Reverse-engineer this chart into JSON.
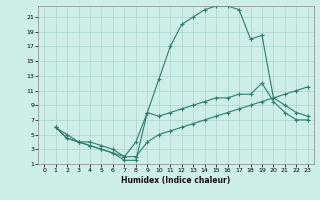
{
  "xlabel": "Humidex (Indice chaleur)",
  "color": "#2d7d6e",
  "bg_color": "#ceeee8",
  "grid_color": "#aad4cc",
  "xlim": [
    -0.5,
    23.5
  ],
  "ylim": [
    1,
    22.5
  ],
  "yticks": [
    1,
    3,
    5,
    7,
    9,
    11,
    13,
    15,
    17,
    19,
    21
  ],
  "xticks": [
    0,
    1,
    2,
    3,
    4,
    5,
    6,
    7,
    8,
    9,
    10,
    11,
    12,
    13,
    14,
    15,
    16,
    17,
    18,
    19,
    20,
    21,
    22,
    23
  ],
  "line1_x": [
    1,
    2,
    3,
    4,
    5,
    6,
    7,
    8,
    9,
    10,
    11,
    12,
    13,
    14,
    15,
    16,
    17,
    18,
    19,
    20,
    21,
    22,
    23
  ],
  "line1_y": [
    6,
    5,
    4,
    4,
    3.5,
    3,
    2,
    4,
    8,
    12.5,
    17,
    20,
    21,
    22,
    22.5,
    22.5,
    22,
    18,
    18.5,
    10,
    9,
    8,
    7.5
  ],
  "line2_x": [
    1,
    2,
    3,
    4,
    5,
    6,
    7,
    8,
    9,
    10,
    11,
    12,
    13,
    14,
    15,
    16,
    17,
    18,
    19,
    20,
    21,
    22,
    23
  ],
  "line2_y": [
    6,
    4.5,
    4,
    3.5,
    3,
    2.5,
    2,
    2,
    4,
    5,
    5.5,
    6,
    6.5,
    7,
    7.5,
    8,
    8.5,
    9,
    9.5,
    10,
    10.5,
    11,
    11.5
  ],
  "line3_x": [
    1,
    2,
    3,
    4,
    5,
    6,
    7,
    8,
    9,
    10,
    11,
    12,
    13,
    14,
    15,
    16,
    17,
    18,
    19,
    20,
    21,
    22,
    23
  ],
  "line3_y": [
    6,
    4.5,
    4,
    3.5,
    3,
    2.5,
    1.5,
    1.5,
    8,
    7.5,
    8,
    8.5,
    9,
    9.5,
    10,
    10,
    10.5,
    10.5,
    12,
    9.5,
    8,
    7,
    7
  ]
}
